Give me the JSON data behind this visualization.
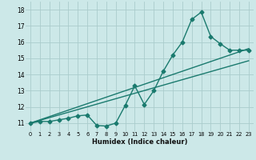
{
  "background_color": "#cce8e8",
  "grid_color": "#aacccc",
  "line_color": "#1a7a6e",
  "xlabel": "Humidex (Indice chaleur)",
  "xlim": [
    -0.5,
    23.5
  ],
  "ylim": [
    10.5,
    18.5
  ],
  "yticks": [
    11,
    12,
    13,
    14,
    15,
    16,
    17,
    18
  ],
  "xticks": [
    0,
    1,
    2,
    3,
    4,
    5,
    6,
    7,
    8,
    9,
    10,
    11,
    12,
    13,
    14,
    15,
    16,
    17,
    18,
    19,
    20,
    21,
    22,
    23
  ],
  "series": [
    {
      "x": [
        0,
        1,
        2,
        3,
        4,
        5,
        6,
        7,
        8,
        9,
        10,
        11,
        12,
        13,
        14,
        15,
        16,
        17,
        18,
        19,
        20,
        21,
        22,
        23
      ],
      "y": [
        11.0,
        11.1,
        11.1,
        11.2,
        11.3,
        11.45,
        11.5,
        10.85,
        10.82,
        11.0,
        12.1,
        13.3,
        12.15,
        13.0,
        14.2,
        15.2,
        16.0,
        17.4,
        17.85,
        16.35,
        15.9,
        15.5,
        15.5,
        15.5
      ],
      "marker": "D",
      "markersize": 2.5,
      "linewidth": 1.0
    },
    {
      "x": [
        0,
        23
      ],
      "y": [
        11.0,
        15.6
      ],
      "marker": null,
      "linewidth": 1.0
    },
    {
      "x": [
        0,
        23
      ],
      "y": [
        11.0,
        14.85
      ],
      "marker": null,
      "linewidth": 1.0
    }
  ]
}
